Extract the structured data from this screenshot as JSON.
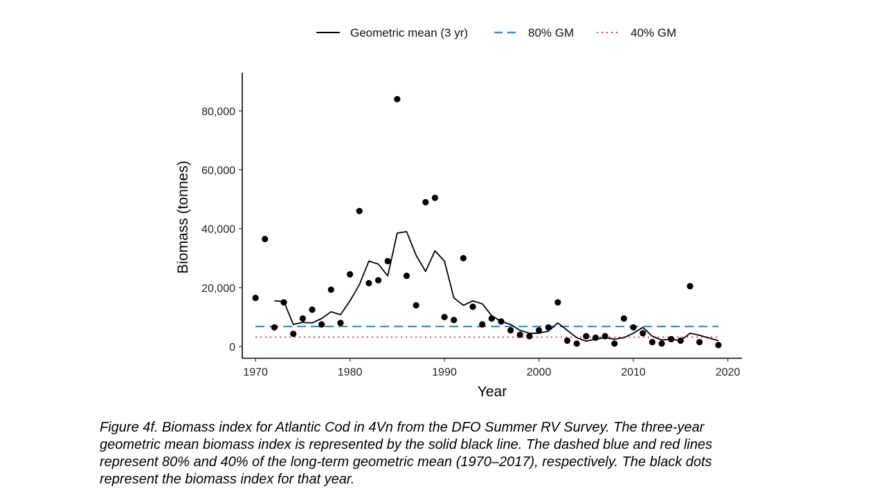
{
  "chart_data": {
    "type": "line",
    "xlabel": "Year",
    "ylabel": "Biomass (tonnes)",
    "xlim": [
      1968.6,
      2021.5
    ],
    "ylim": [
      -4000,
      93000
    ],
    "xticks": [
      1970,
      1980,
      1990,
      2000,
      2010,
      2020
    ],
    "yticks": [
      0,
      20000,
      40000,
      60000,
      80000
    ],
    "ytick_labels": [
      "0",
      "20,000",
      "40,000",
      "60,000",
      "80,000"
    ],
    "grid": false,
    "legend_position": "top",
    "legend": [
      {
        "label": "Geometric mean (3 yr)",
        "style": "solid",
        "color": "#000000"
      },
      {
        "label": "80% GM",
        "style": "dashed",
        "color": "#3a8fd6"
      },
      {
        "label": "40% GM",
        "style": "dotted",
        "color": "#b5394c"
      }
    ],
    "points": {
      "x": [
        1970,
        1971,
        1972,
        1973,
        1974,
        1975,
        1976,
        1977,
        1978,
        1979,
        1980,
        1981,
        1982,
        1983,
        1984,
        1985,
        1986,
        1987,
        1988,
        1989,
        1990,
        1991,
        1992,
        1993,
        1994,
        1995,
        1996,
        1997,
        1998,
        1999,
        2000,
        2001,
        2002,
        2003,
        2004,
        2005,
        2006,
        2007,
        2008,
        2009,
        2010,
        2011,
        2012,
        2013,
        2014,
        2015,
        2016,
        2017,
        2019
      ],
      "y": [
        16500,
        36500,
        6500,
        15000,
        4300,
        9500,
        12500,
        7500,
        19300,
        8000,
        24500,
        46000,
        21500,
        22500,
        29000,
        84000,
        24000,
        14000,
        49000,
        50500,
        10000,
        9000,
        30000,
        13500,
        7500,
        9500,
        8500,
        5500,
        4000,
        3500,
        5500,
        6500,
        15000,
        2000,
        1000,
        3500,
        3000,
        3500,
        1000,
        9500,
        6500,
        4500,
        1500,
        1000,
        2500,
        2000,
        20500,
        1500,
        500
      ]
    },
    "series": [
      {
        "name": "Geometric mean (3 yr)",
        "x": [
          1972,
          1973,
          1974,
          1975,
          1976,
          1977,
          1978,
          1979,
          1980,
          1981,
          1982,
          1983,
          1984,
          1985,
          1986,
          1987,
          1988,
          1989,
          1990,
          1991,
          1992,
          1993,
          1994,
          1995,
          1996,
          1997,
          1998,
          1999,
          2000,
          2001,
          2002,
          2003,
          2004,
          2005,
          2006,
          2007,
          2008,
          2009,
          2010,
          2011,
          2012,
          2013,
          2014,
          2015,
          2016,
          2017,
          2019
        ],
        "y": [
          15500,
          15300,
          7500,
          8200,
          8000,
          9500,
          11800,
          10800,
          15500,
          21000,
          29000,
          28000,
          24000,
          38500,
          39000,
          31000,
          25500,
          32500,
          29000,
          16500,
          14000,
          15500,
          14500,
          10500,
          8500,
          7500,
          5500,
          4500,
          4500,
          5200,
          8000,
          5500,
          3000,
          1800,
          2500,
          3000,
          2500,
          3000,
          4500,
          6500,
          3500,
          2200,
          2500,
          2000,
          4500,
          3800,
          2000
        ]
      },
      {
        "name": "80% GM",
        "x": [
          1970,
          2019
        ],
        "y": [
          6800,
          6800
        ]
      },
      {
        "name": "40% GM",
        "x": [
          1970,
          2019
        ],
        "y": [
          3200,
          3200
        ]
      }
    ]
  },
  "caption": {
    "lines": [
      "Figure 4f. Biomass index for Atlantic Cod in 4Vn from the DFO Summer RV Survey. The three-year",
      "geometric mean biomass index is represented by the solid black line. The dashed blue and red lines",
      "represent 80% and 40% of the long-term geometric mean (1970–2017), respectively. The black dots",
      "represent the biomass index for that year."
    ]
  }
}
